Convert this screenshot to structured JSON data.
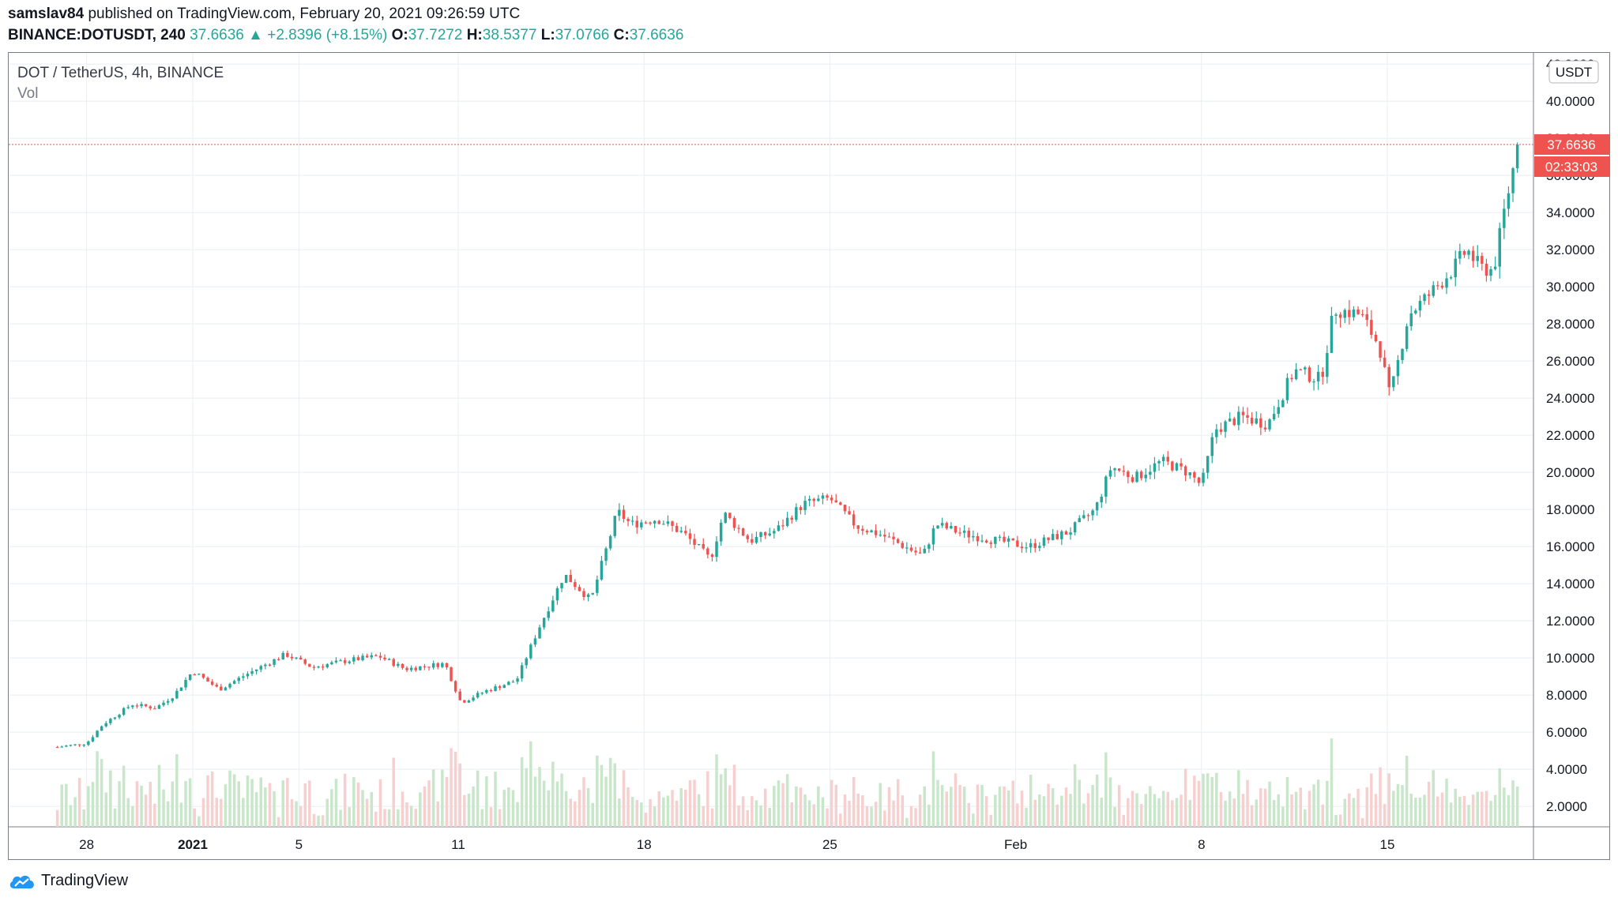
{
  "header": {
    "publisher": "samslav84",
    "publish_text": "published on TradingView.com, February 20, 2021 09:26:59 UTC",
    "symbol": "BINANCE:DOTUSDT, 240",
    "last_price": "37.6636",
    "change": "+2.8396 (+8.15%)",
    "o_label": "O:",
    "o_value": "37.7272",
    "h_label": "H:",
    "h_value": "38.5377",
    "l_label": "L:",
    "l_value": "37.0766",
    "c_label": "C:",
    "c_value": "37.6636"
  },
  "legend": {
    "pair": "DOT / TetherUS, 4h, BINANCE",
    "volume": "Vol"
  },
  "price_axis": {
    "currency": "USDT",
    "current_price_label": "37.6636",
    "countdown_label": "02:33:03",
    "tick_labels": [
      "2.0000",
      "4.0000",
      "6.0000",
      "8.0000",
      "10.0000",
      "12.0000",
      "14.0000",
      "16.0000",
      "18.0000",
      "20.0000",
      "22.0000",
      "24.0000",
      "26.0000",
      "28.0000",
      "30.0000",
      "32.0000",
      "34.0000",
      "36.0000",
      "38.0000",
      "40.0000",
      "42.0000"
    ]
  },
  "time_axis": {
    "tick_labels": [
      "28",
      "2021",
      "5",
      "11",
      "18",
      "25",
      "Feb",
      "8",
      "15"
    ]
  },
  "footer": {
    "brand": "TradingView"
  },
  "colors": {
    "up": "#26a69a",
    "down": "#ef5350",
    "volume_up": "#c8e6c9",
    "volume_down": "#f6cfcf",
    "grid": "#e8eef2",
    "price_line": "#ef5350"
  },
  "chart_data": {
    "type": "candlestick",
    "title": "DOT / TetherUS, 4h, BINANCE",
    "ylabel": "USDT",
    "ylim": [
      0.9,
      42.6
    ],
    "grid": true,
    "last_price": 37.6636,
    "x_ticks": [
      {
        "label": "28",
        "day": 1
      },
      {
        "label": "2021",
        "day": 5
      },
      {
        "label": "5",
        "day": 9
      },
      {
        "label": "11",
        "day": 15
      },
      {
        "label": "18",
        "day": 22
      },
      {
        "label": "25",
        "day": 29
      },
      {
        "label": "Feb",
        "day": 36
      },
      {
        "label": "8",
        "day": 43
      },
      {
        "label": "15",
        "day": 50
      }
    ],
    "close_path": [
      {
        "day": -0.1,
        "close": 5.2
      },
      {
        "day": 1.0,
        "close": 5.4
      },
      {
        "day": 1.6,
        "close": 6.4
      },
      {
        "day": 2.7,
        "close": 7.5
      },
      {
        "day": 3.6,
        "close": 7.3
      },
      {
        "day": 4.3,
        "close": 8.0
      },
      {
        "day": 5.0,
        "close": 9.3
      },
      {
        "day": 6.0,
        "close": 8.3
      },
      {
        "day": 7.0,
        "close": 9.1
      },
      {
        "day": 8.5,
        "close": 10.2
      },
      {
        "day": 9.5,
        "close": 9.5
      },
      {
        "day": 11.0,
        "close": 9.9
      },
      {
        "day": 12.0,
        "close": 10.1
      },
      {
        "day": 13.0,
        "close": 9.4
      },
      {
        "day": 14.5,
        "close": 9.7
      },
      {
        "day": 15.1,
        "close": 7.6
      },
      {
        "day": 16.0,
        "close": 8.2
      },
      {
        "day": 17.2,
        "close": 8.8
      },
      {
        "day": 18.0,
        "close": 11.5
      },
      {
        "day": 19.0,
        "close": 14.5
      },
      {
        "day": 20.0,
        "close": 13.1
      },
      {
        "day": 21.0,
        "close": 17.9
      },
      {
        "day": 21.5,
        "close": 17.2
      },
      {
        "day": 22.5,
        "close": 17.5
      },
      {
        "day": 23.5,
        "close": 16.7
      },
      {
        "day": 24.5,
        "close": 15.3
      },
      {
        "day": 25.0,
        "close": 17.8
      },
      {
        "day": 26.0,
        "close": 16.3
      },
      {
        "day": 27.0,
        "close": 16.9
      },
      {
        "day": 28.0,
        "close": 18.3
      },
      {
        "day": 29.0,
        "close": 18.6
      },
      {
        "day": 30.0,
        "close": 17.1
      },
      {
        "day": 31.0,
        "close": 16.6
      },
      {
        "day": 32.5,
        "close": 15.5
      },
      {
        "day": 33.0,
        "close": 17.2
      },
      {
        "day": 34.0,
        "close": 16.7
      },
      {
        "day": 35.0,
        "close": 16.4
      },
      {
        "day": 36.5,
        "close": 16.0
      },
      {
        "day": 38.0,
        "close": 16.8
      },
      {
        "day": 39.0,
        "close": 18.0
      },
      {
        "day": 39.6,
        "close": 20.3
      },
      {
        "day": 40.5,
        "close": 19.7
      },
      {
        "day": 41.5,
        "close": 20.6
      },
      {
        "day": 42.5,
        "close": 20.0
      },
      {
        "day": 43.0,
        "close": 19.3
      },
      {
        "day": 43.5,
        "close": 22.3
      },
      {
        "day": 44.5,
        "close": 23.0
      },
      {
        "day": 45.5,
        "close": 22.6
      },
      {
        "day": 46.5,
        "close": 25.5
      },
      {
        "day": 47.5,
        "close": 25.0
      },
      {
        "day": 48.0,
        "close": 28.8
      },
      {
        "day": 49.0,
        "close": 28.5
      },
      {
        "day": 49.7,
        "close": 26.8
      },
      {
        "day": 50.1,
        "close": 24.0
      },
      {
        "day": 50.8,
        "close": 28.5
      },
      {
        "day": 51.6,
        "close": 29.6
      },
      {
        "day": 52.5,
        "close": 31.0
      },
      {
        "day": 53.0,
        "close": 32.0
      },
      {
        "day": 53.5,
        "close": 31.0
      },
      {
        "day": 54.0,
        "close": 30.9
      },
      {
        "day": 54.4,
        "close": 34.0
      },
      {
        "day": 54.8,
        "close": 36.8
      },
      {
        "day": 55.0,
        "close": 37.66
      }
    ],
    "candles_per_day": 6,
    "volume_axis_hint": "volume bars drawn in bottom band, colored by candle direction"
  }
}
